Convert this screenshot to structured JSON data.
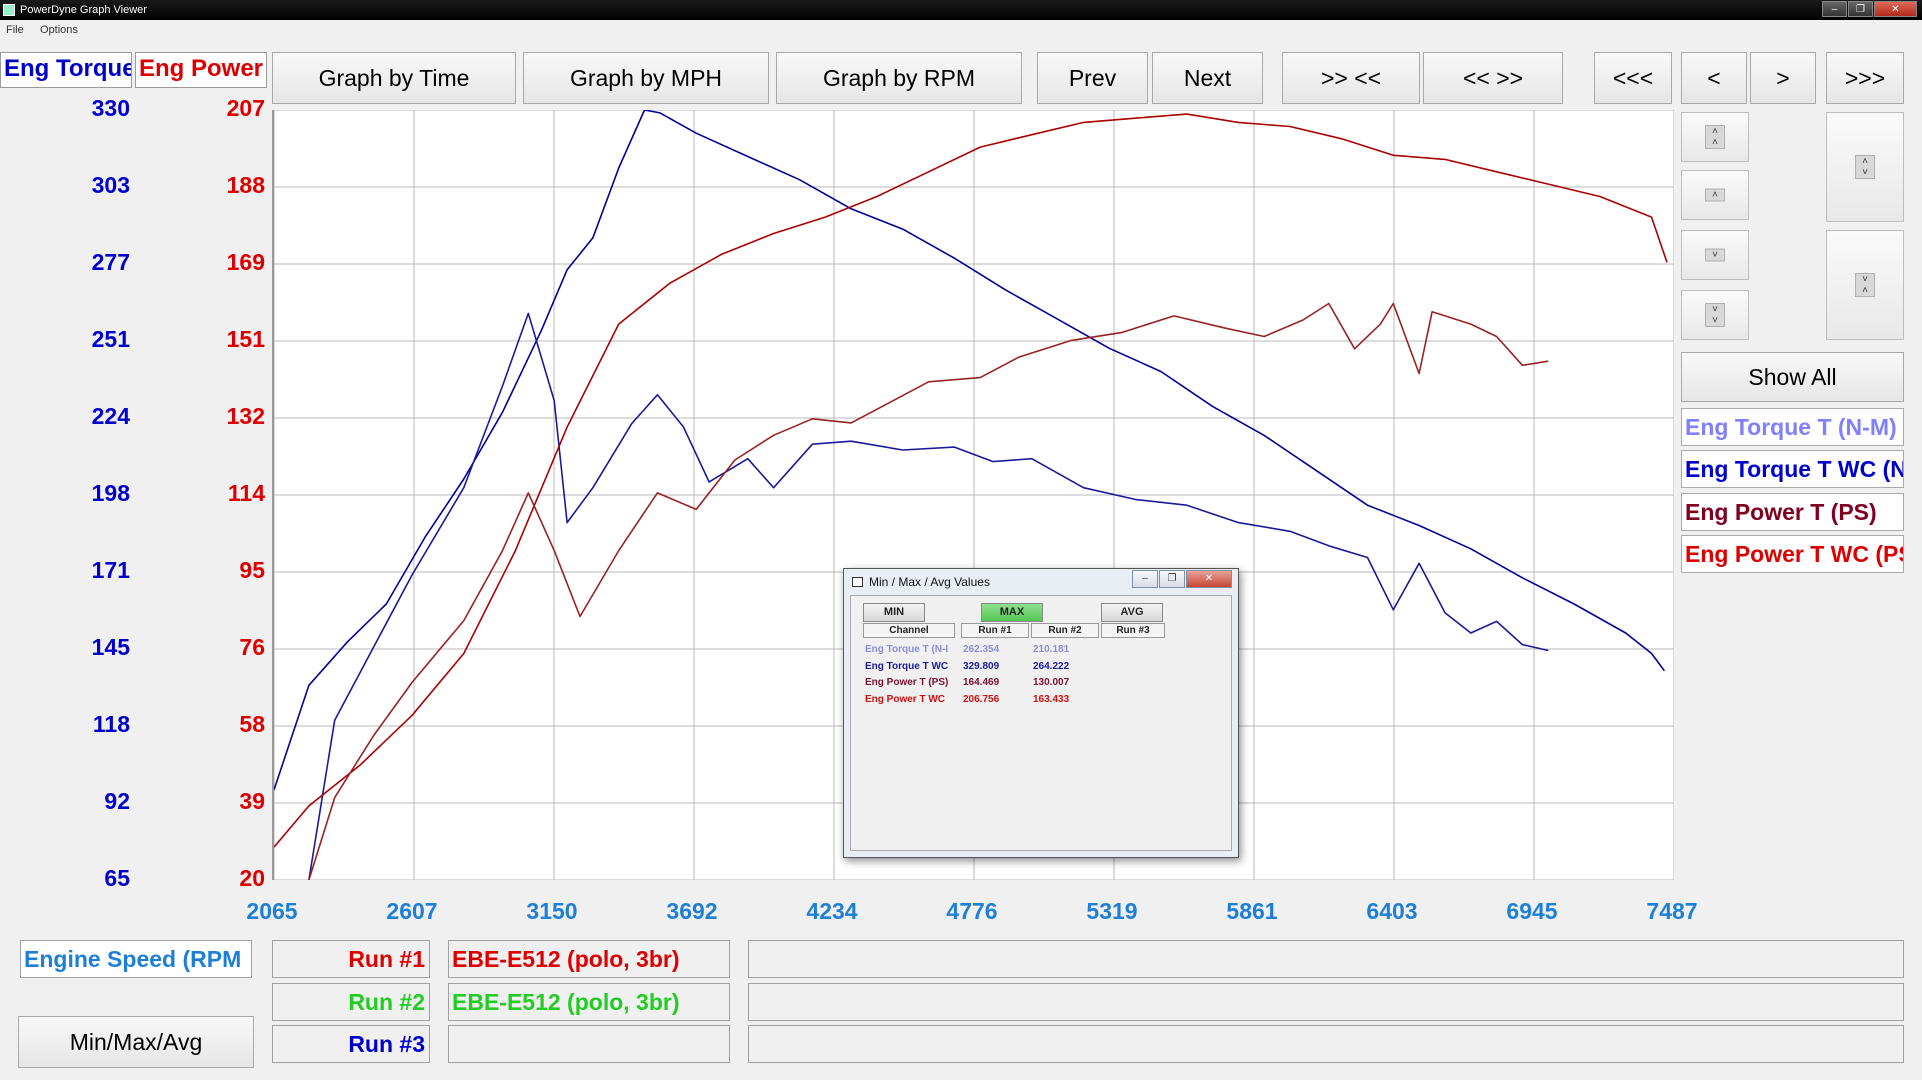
{
  "window": {
    "title": "PowerDyne Graph Viewer"
  },
  "menu": [
    "File",
    "Options"
  ],
  "headers": {
    "torque": "Eng Torque",
    "power": "Eng Power"
  },
  "toolbar": {
    "graph_time": "Graph by Time",
    "graph_mph": "Graph by MPH",
    "graph_rpm": "Graph by RPM",
    "prev": "Prev",
    "next": "Next",
    "zoom_in": ">> <<",
    "zoom_out": "<< >>",
    "first": "<<<",
    "back": "<",
    "forward": ">",
    "last": ">>>"
  },
  "colors": {
    "torque_axis": "#0000cc",
    "power_axis": "#dd0000",
    "x_axis": "#1e7fd6",
    "torque_run1": "#000099",
    "torque_run2": "#1a1a99",
    "power_run1": "#aa0000",
    "power_run2": "#992222",
    "run1": "#dd0000",
    "run2": "#22cc22",
    "run3": "#0000cc"
  },
  "right_panel": {
    "show_all": "Show All",
    "legend": [
      {
        "label": "Eng Torque T (N-M)",
        "color": "#8080ff"
      },
      {
        "label": "Eng Torque T WC (N-M)",
        "color": "#0000cc"
      },
      {
        "label": "Eng Power T (PS)",
        "color": "#800020"
      },
      {
        "label": "Eng Power T WC (PS)",
        "color": "#dd0000"
      }
    ]
  },
  "bottom": {
    "x_channel": "Engine Speed (RPM",
    "minmax_button": "Min/Max/Avg",
    "runs": [
      {
        "label": "Run #1",
        "name": "EBE-E512 (polo, 3br)"
      },
      {
        "label": "Run #2",
        "name": "EBE-E512 (polo, 3br)"
      },
      {
        "label": "Run #3",
        "name": ""
      }
    ]
  },
  "dialog": {
    "title": "Min / Max / Avg Values",
    "tabs": {
      "min": "MIN",
      "max": "MAX",
      "avg": "AVG"
    },
    "columns": [
      "Channel",
      "Run #1",
      "Run #2",
      "Run #3"
    ],
    "rows": [
      {
        "channel": "Eng Torque T (N-I",
        "run1": "262.354",
        "run2": "210.181",
        "run3": "",
        "color": "#8c8cd8"
      },
      {
        "channel": "Eng Torque T WC",
        "run1": "329.809",
        "run2": "264.222",
        "run3": "",
        "color": "#1a1a9a"
      },
      {
        "channel": "Eng Power T (PS)",
        "run1": "164.469",
        "run2": "130.007",
        "run3": "",
        "color": "#7a1030"
      },
      {
        "channel": "Eng Power T WC",
        "run1": "206.756",
        "run2": "163.433",
        "run3": "",
        "color": "#cc1010"
      }
    ]
  },
  "chart_data": {
    "type": "line",
    "xlabel": "Engine Speed (RPM",
    "x_ticks": [
      "2065",
      "2607",
      "3150",
      "3692",
      "4234",
      "4776",
      "5319",
      "5861",
      "6403",
      "6945",
      "7487"
    ],
    "y_left_ticks": [
      "330",
      "303",
      "277",
      "251",
      "224",
      "198",
      "171",
      "145",
      "118",
      "92",
      "65"
    ],
    "y_right_ticks": [
      "207",
      "188",
      "169",
      "151",
      "132",
      "114",
      "95",
      "76",
      "58",
      "39",
      "20"
    ],
    "xlim": [
      2065,
      7487
    ],
    "y_left_lim": [
      65,
      330
    ],
    "y_right_lim": [
      20,
      207
    ],
    "grid": true,
    "series": [
      {
        "name": "Eng Torque T WC",
        "axis": "left",
        "color": "#000099",
        "x": [
          2065,
          2200,
          2350,
          2500,
          2650,
          2800,
          2950,
          3100,
          3200,
          3300,
          3400,
          3500,
          3560,
          3700,
          3900,
          4100,
          4300,
          4500,
          4700,
          4900,
          5100,
          5300,
          5500,
          5700,
          5900,
          6100,
          6300,
          6500,
          6700,
          6900,
          7100,
          7300,
          7400,
          7450
        ],
        "y": [
          96,
          132,
          147,
          160,
          183,
          203,
          226,
          254,
          275,
          286,
          310,
          330,
          329,
          322,
          314,
          306,
          296,
          289,
          279,
          268,
          258,
          248,
          240,
          228,
          218,
          206,
          194,
          187,
          179,
          169,
          160,
          150,
          143,
          137
        ]
      },
      {
        "name": "Eng Torque T (N-M)",
        "axis": "left",
        "color": "#1a1a99",
        "x": [
          2200,
          2300,
          2450,
          2600,
          2800,
          2950,
          3050,
          3150,
          3200,
          3300,
          3450,
          3550,
          3650,
          3750,
          3900,
          4000,
          4150,
          4300,
          4500,
          4700,
          4850,
          5000,
          5200,
          5400,
          5600,
          5800,
          6000,
          6150,
          6300,
          6400,
          6500,
          6600,
          6700,
          6800,
          6900,
          7000
        ],
        "y": [
          65,
          120,
          145,
          170,
          200,
          235,
          260,
          230,
          188,
          200,
          222,
          232,
          221,
          202,
          210,
          200,
          215,
          216,
          213,
          214,
          209,
          210,
          200,
          196,
          194,
          188,
          185,
          180,
          176,
          158,
          174,
          157,
          150,
          154,
          146,
          144
        ]
      },
      {
        "name": "Eng Power T WC",
        "axis": "right",
        "color": "#aa0000",
        "x": [
          2065,
          2200,
          2400,
          2600,
          2800,
          3000,
          3200,
          3400,
          3600,
          3800,
          4000,
          4200,
          4400,
          4600,
          4800,
          5000,
          5200,
          5400,
          5600,
          5800,
          6000,
          6200,
          6400,
          6600,
          6800,
          7000,
          7200,
          7400,
          7460
        ],
        "y": [
          28,
          38,
          48,
          60,
          75,
          100,
          130,
          155,
          165,
          172,
          177,
          181,
          186,
          192,
          198,
          201,
          204,
          205,
          206,
          204,
          203,
          200,
          196,
          195,
          192,
          189,
          186,
          181,
          170
        ]
      },
      {
        "name": "Eng Power T (PS)",
        "axis": "right",
        "color": "#992222",
        "x": [
          2200,
          2300,
          2450,
          2600,
          2800,
          2950,
          3050,
          3150,
          3250,
          3400,
          3550,
          3700,
          3850,
          4000,
          4150,
          4300,
          4450,
          4600,
          4800,
          4950,
          5150,
          5350,
          5550,
          5750,
          5900,
          6050,
          6150,
          6250,
          6350,
          6400,
          6500,
          6550,
          6700,
          6800,
          6900,
          7000
        ],
        "y": [
          20,
          40,
          55,
          68,
          83,
          100,
          114,
          100,
          84,
          100,
          114,
          110,
          122,
          128,
          132,
          131,
          136,
          141,
          142,
          147,
          151,
          153,
          157,
          154,
          152,
          156,
          160,
          149,
          155,
          160,
          143,
          158,
          155,
          152,
          145,
          146
        ]
      }
    ]
  }
}
